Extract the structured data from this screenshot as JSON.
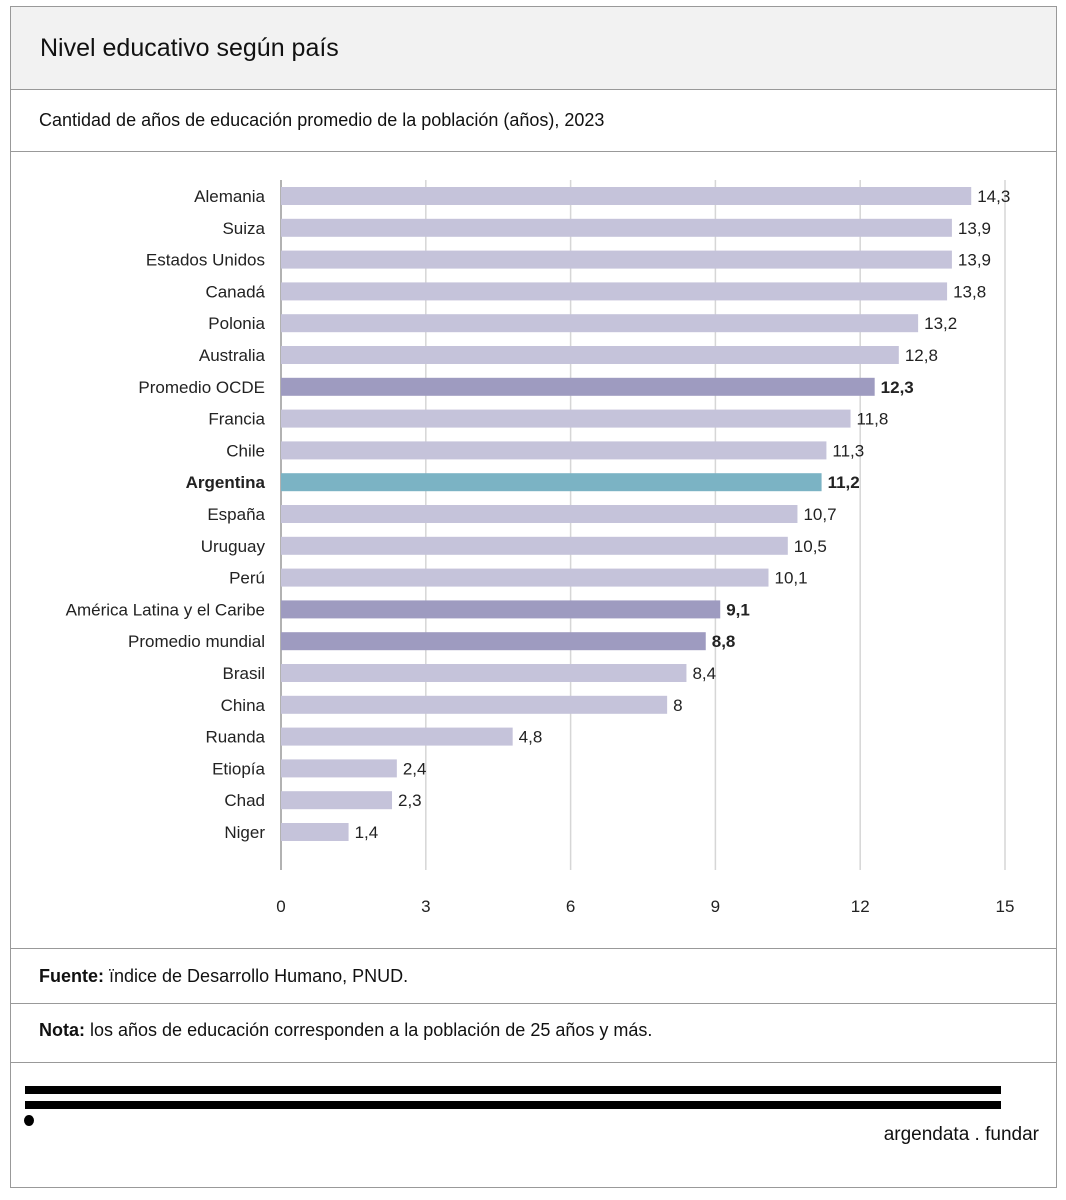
{
  "header": {
    "title": "Nivel educativo según país",
    "subtitle": "Cantidad de años de educación promedio de la población (años), 2023"
  },
  "footer": {
    "source_label": "Fuente:",
    "source_text": " ïndice de Desarrollo Humano, PNUD.",
    "note_label": "Nota:",
    "note_text": " los años de educación corresponden a la población de 25 años y más.",
    "brand": "argendata . fundar"
  },
  "colors": {
    "default": "#c5c3da",
    "aggregate": "#9e9bc0",
    "highlight": "#7bb3c4"
  },
  "chart_data": {
    "type": "bar",
    "orientation": "horizontal",
    "title": "Nivel educativo según país",
    "xlabel": "",
    "ylabel": "",
    "xlim": [
      0,
      15
    ],
    "xticks": [
      0,
      3,
      6,
      9,
      12,
      15
    ],
    "grid": true,
    "categories": [
      "Alemania",
      "Suiza",
      "Estados Unidos",
      "Canadá",
      "Polonia",
      "Australia",
      "Promedio OCDE",
      "Francia",
      "Chile",
      "Argentina",
      "España",
      "Uruguay",
      "Perú",
      "América Latina y el Caribe",
      "Promedio mundial",
      "Brasil",
      "China",
      "Ruanda",
      "Etiopía",
      "Chad",
      "Niger"
    ],
    "values": [
      14.3,
      13.9,
      13.9,
      13.8,
      13.2,
      12.8,
      12.3,
      11.8,
      11.3,
      11.2,
      10.7,
      10.5,
      10.1,
      9.1,
      8.8,
      8.4,
      8,
      4.8,
      2.4,
      2.3,
      1.4
    ],
    "value_labels": [
      "14,3",
      "13,9",
      "13,9",
      "13,8",
      "13,2",
      "12,8",
      "12,3",
      "11,8",
      "11,3",
      "11,2",
      "10,7",
      "10,5",
      "10,1",
      "9,1",
      "8,8",
      "8,4",
      "8",
      "4,8",
      "2,4",
      "2,3",
      "1,4"
    ],
    "kinds": [
      "default",
      "default",
      "default",
      "default",
      "default",
      "default",
      "aggregate",
      "default",
      "default",
      "highlight",
      "default",
      "default",
      "default",
      "aggregate",
      "aggregate",
      "default",
      "default",
      "default",
      "default",
      "default",
      "default"
    ]
  }
}
